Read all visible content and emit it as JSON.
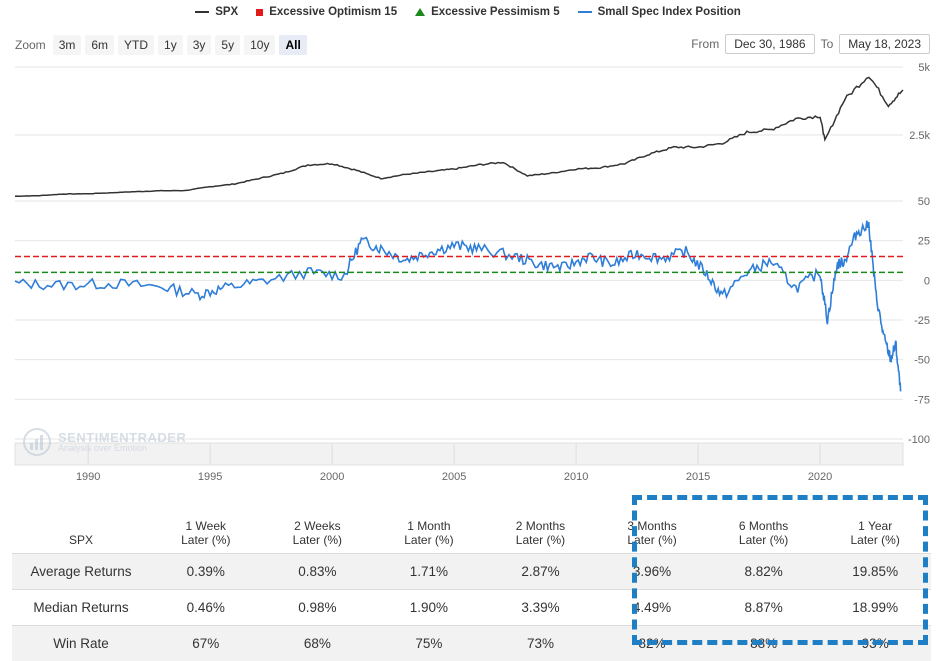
{
  "legend": {
    "items": [
      {
        "label": "SPX",
        "color": "#333333",
        "swatch": "line"
      },
      {
        "label": "Excessive Optimism 15",
        "color": "#e31a1c",
        "swatch": "box"
      },
      {
        "label": "Excessive Pessimism 5",
        "color": "#1a8a1a",
        "swatch": "triangle"
      },
      {
        "label": "Small Spec Index Position",
        "color": "#2f7ed8",
        "swatch": "line"
      }
    ]
  },
  "toolbar": {
    "zoom_label": "Zoom",
    "buttons": [
      "3m",
      "6m",
      "YTD",
      "1y",
      "3y",
      "5y",
      "10y",
      "All"
    ],
    "active": "All"
  },
  "range": {
    "from_label": "From",
    "from": "Dec 30, 1986",
    "to_label": "To",
    "to": "May 18, 2023"
  },
  "watermark": {
    "name": "SENTIMENTRADER",
    "tagline": "Analysis over Emotion"
  },
  "chart_data": [
    {
      "type": "line",
      "series": [
        {
          "name": "SPX",
          "color": "#333333",
          "x": [
            1987,
            1988,
            1989,
            1990,
            1991,
            1992,
            1993,
            1994,
            1995,
            1996,
            1997,
            1998,
            1999,
            2000,
            2001,
            2002,
            2003,
            2004,
            2005,
            2006,
            2007,
            2008,
            2009,
            2010,
            2011,
            2012,
            2013,
            2014,
            2015,
            2016,
            2017,
            2018,
            2019,
            2020,
            2020.2,
            2021,
            2022,
            2022.8,
            2023.4
          ],
          "y": [
            250,
            270,
            330,
            340,
            380,
            420,
            450,
            460,
            600,
            700,
            900,
            1100,
            1400,
            1450,
            1200,
            900,
            1050,
            1150,
            1250,
            1400,
            1500,
            1000,
            1100,
            1250,
            1300,
            1450,
            1800,
            2050,
            2050,
            2200,
            2600,
            2700,
            3100,
            3200,
            2300,
            3800,
            4700,
            3600,
            4150
          ]
        }
      ],
      "ylim": [
        0,
        5000
      ],
      "yticks": [
        "5k",
        "2.5k"
      ],
      "xlim": [
        1987,
        2023.4
      ]
    },
    {
      "type": "line",
      "series": [
        {
          "name": "Small Spec Index Position",
          "color": "#2f7ed8",
          "x": [
            1987,
            1989,
            1991,
            1993,
            1994.5,
            1995.5,
            1997,
            1999,
            2000.5,
            2001.2,
            2002,
            2003,
            2004,
            2005,
            2006,
            2007.5,
            2008.5,
            2009.5,
            2010.5,
            2011.5,
            2012.5,
            2013.5,
            2014.5,
            2015.3,
            2016,
            2017,
            2018,
            2019,
            2020,
            2020.3,
            2020.7,
            2021,
            2021.5,
            2022,
            2022.3,
            2022.6,
            2022.9,
            2023.1,
            2023.3
          ],
          "y": [
            -2,
            -3,
            -2,
            -4,
            -9,
            -5,
            -1,
            5,
            3,
            25,
            20,
            13,
            18,
            22,
            20,
            15,
            10,
            8,
            15,
            10,
            17,
            14,
            18,
            5,
            -10,
            5,
            12,
            -5,
            5,
            -25,
            10,
            12,
            30,
            35,
            -10,
            -35,
            -50,
            -40,
            -70
          ]
        },
        {
          "name": "Excessive Optimism 15",
          "color": "#e31a1c",
          "y": 15
        },
        {
          "name": "Excessive Pessimism 5",
          "color": "#1a8a1a",
          "y": 5
        }
      ],
      "ylim": [
        -100,
        50
      ],
      "yticks": [
        "50",
        "25",
        "0",
        "-25",
        "-50",
        "-75",
        "-100"
      ],
      "xticks": [
        "1990",
        "1995",
        "2000",
        "2005",
        "2010",
        "2015",
        "2020"
      ],
      "xlim": [
        1987,
        2023.4
      ]
    }
  ],
  "table": {
    "corner": "SPX",
    "headers": [
      [
        "1 Week",
        "Later (%)"
      ],
      [
        "2 Weeks",
        "Later (%)"
      ],
      [
        "1 Month",
        "Later (%)"
      ],
      [
        "2 Months",
        "Later (%)"
      ],
      [
        "3 Months",
        "Later (%)"
      ],
      [
        "6 Months",
        "Later (%)"
      ],
      [
        "1 Year",
        "Later (%)"
      ]
    ],
    "rows": [
      {
        "label": "Average Returns",
        "values": [
          "0.39%",
          "0.83%",
          "1.71%",
          "2.87%",
          "3.96%",
          "8.82%",
          "19.85%"
        ]
      },
      {
        "label": "Median Returns",
        "values": [
          "0.46%",
          "0.98%",
          "1.90%",
          "3.39%",
          "4.49%",
          "8.87%",
          "18.99%"
        ]
      },
      {
        "label": "Win Rate",
        "values": [
          "67%",
          "68%",
          "75%",
          "73%",
          "82%",
          "88%",
          "93%"
        ]
      }
    ]
  }
}
